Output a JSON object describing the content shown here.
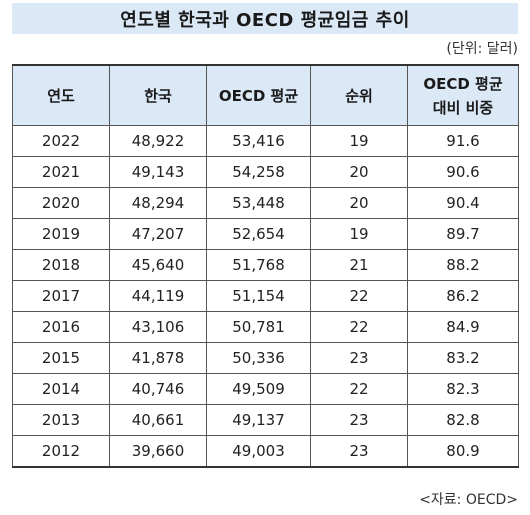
{
  "title": "연도별 한국과 OECD 평균임금 추이",
  "unit": "(단위: 달러)",
  "source": "<자료: OECD>",
  "colors": {
    "header_bg": "#dbe8f6",
    "title_bg": "#dbe8f6",
    "border": "#555555"
  },
  "table": {
    "headers": [
      "연도",
      "한국",
      "OECD 평균",
      "순위",
      "OECD 평균",
      "대비 비중"
    ],
    "rows": [
      {
        "year": "2022",
        "korea": "48,922",
        "oecd": "53,416",
        "rank": "19",
        "ratio": "91.6"
      },
      {
        "year": "2021",
        "korea": "49,143",
        "oecd": "54,258",
        "rank": "20",
        "ratio": "90.6"
      },
      {
        "year": "2020",
        "korea": "48,294",
        "oecd": "53,448",
        "rank": "20",
        "ratio": "90.4"
      },
      {
        "year": "2019",
        "korea": "47,207",
        "oecd": "52,654",
        "rank": "19",
        "ratio": "89.7"
      },
      {
        "year": "2018",
        "korea": "45,640",
        "oecd": "51,768",
        "rank": "21",
        "ratio": "88.2"
      },
      {
        "year": "2017",
        "korea": "44,119",
        "oecd": "51,154",
        "rank": "22",
        "ratio": "86.2"
      },
      {
        "year": "2016",
        "korea": "43,106",
        "oecd": "50,781",
        "rank": "22",
        "ratio": "84.9"
      },
      {
        "year": "2015",
        "korea": "41,878",
        "oecd": "50,336",
        "rank": "23",
        "ratio": "83.2"
      },
      {
        "year": "2014",
        "korea": "40,746",
        "oecd": "49,509",
        "rank": "22",
        "ratio": "82.3"
      },
      {
        "year": "2013",
        "korea": "40,661",
        "oecd": "49,137",
        "rank": "23",
        "ratio": "82.8"
      },
      {
        "year": "2012",
        "korea": "39,660",
        "oecd": "49,003",
        "rank": "23",
        "ratio": "80.9"
      }
    ]
  }
}
